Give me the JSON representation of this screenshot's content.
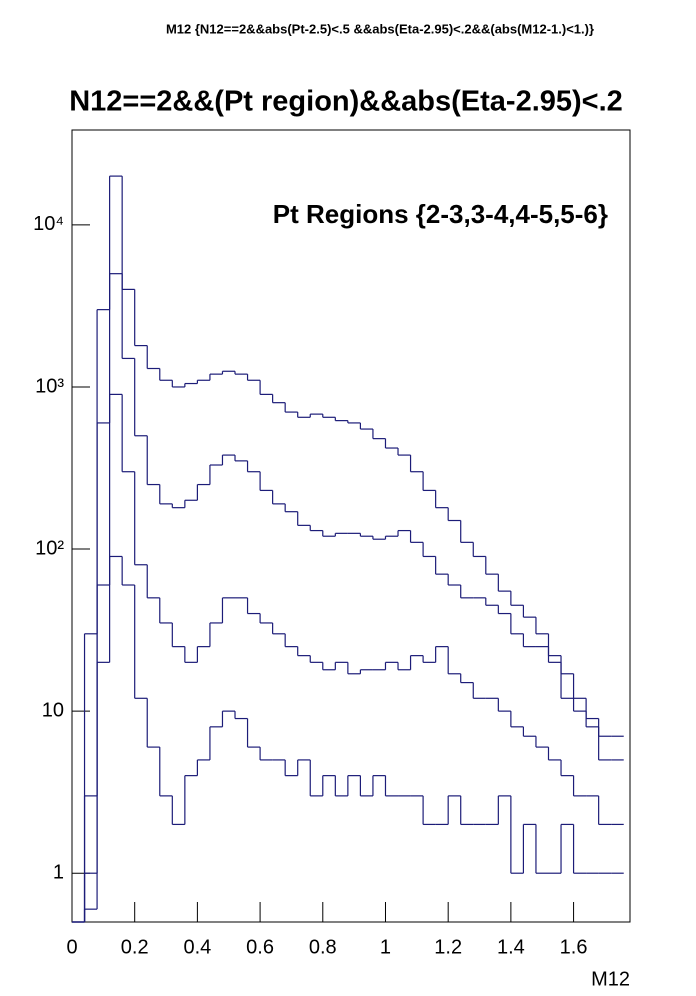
{
  "chart_data": {
    "type": "histogram",
    "header": "M12 {N12==2&&abs(Pt-2.5)<.5 &&abs(Eta-2.95)<.2&&(abs(M12-1.)<1.)}",
    "title": "N12==2&&(Pt region)&&abs(Eta-2.95)<.2",
    "annotation": "Pt Regions {2-3,3-4,4-5,5-6}",
    "x_label": "M12",
    "log_y": true,
    "color": "#1c1c78",
    "bins": [
      0,
      0.04,
      0.08,
      0.12,
      0.16,
      0.2,
      0.24,
      0.28,
      0.32,
      0.36,
      0.4,
      0.44,
      0.48,
      0.52,
      0.56,
      0.6,
      0.64,
      0.68,
      0.72,
      0.76,
      0.8,
      0.84,
      0.88,
      0.92,
      0.96,
      1,
      1.04,
      1.08,
      1.12,
      1.16,
      1.2,
      1.24,
      1.28,
      1.32,
      1.36,
      1.4,
      1.44,
      1.48,
      1.52,
      1.56,
      1.6,
      1.64,
      1.68,
      1.72,
      1.76
    ],
    "series": [
      {
        "values": [
          0,
          30,
          3000,
          20000,
          4000,
          1800,
          1300,
          1100,
          1000,
          1050,
          1100,
          1200,
          1250,
          1200,
          1100,
          900,
          800,
          700,
          650,
          680,
          650,
          620,
          600,
          550,
          480,
          420,
          380,
          300,
          230,
          180,
          150,
          110,
          90,
          70,
          55,
          45,
          38,
          30,
          22,
          17,
          12,
          9,
          7,
          7
        ]
      },
      {
        "values": [
          0,
          3,
          600,
          5000,
          1500,
          500,
          250,
          190,
          180,
          200,
          250,
          330,
          380,
          350,
          300,
          230,
          190,
          170,
          140,
          130,
          120,
          125,
          125,
          120,
          115,
          120,
          130,
          110,
          90,
          70,
          60,
          50,
          50,
          45,
          40,
          30,
          25,
          25,
          20,
          12,
          10,
          8,
          5,
          5
        ]
      },
      {
        "values": [
          0,
          1,
          60,
          900,
          300,
          80,
          50,
          35,
          25,
          20,
          25,
          35,
          50,
          50,
          40,
          35,
          30,
          25,
          22,
          20,
          18,
          20,
          17,
          18,
          18,
          20,
          18,
          22,
          20,
          25,
          17,
          15,
          12,
          12,
          10,
          8,
          7,
          6,
          5,
          4,
          3,
          3,
          2,
          2
        ]
      },
      {
        "values": [
          0,
          0.6,
          20,
          90,
          60,
          12,
          6,
          3,
          2,
          4,
          5,
          8,
          10,
          9,
          6,
          5,
          5,
          4,
          5,
          3,
          4,
          3,
          4,
          3,
          4,
          3,
          3,
          3,
          2,
          2,
          3,
          2,
          2,
          2,
          3,
          1,
          2,
          1,
          1,
          2,
          1,
          1,
          1,
          1
        ]
      }
    ],
    "xlim": [
      0,
      1.78
    ],
    "xticks": [
      0,
      0.2,
      0.4,
      0.6,
      0.8,
      1,
      1.2,
      1.4,
      1.6
    ],
    "ylim": [
      0.5,
      38500
    ],
    "yticks": [
      1,
      10,
      {
        "value": 100,
        "label": "10²"
      },
      {
        "value": 1000,
        "label": "10³"
      },
      {
        "value": 10000,
        "label": "10⁴"
      }
    ]
  }
}
